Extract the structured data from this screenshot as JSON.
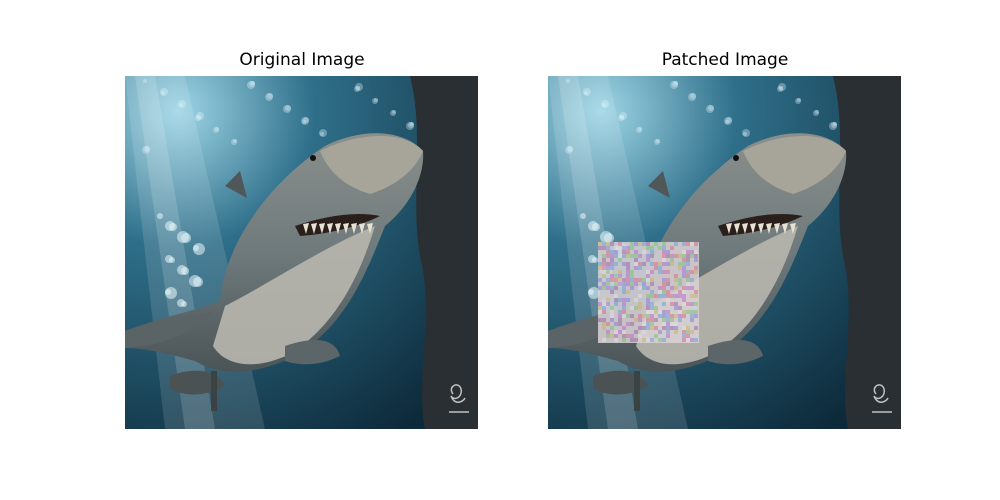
{
  "figure": {
    "panels": [
      {
        "title": "Original Image",
        "content": "shark-photo",
        "patched": false
      },
      {
        "title": "Patched Image",
        "content": "shark-photo",
        "patched": true
      }
    ]
  },
  "colors": {
    "water_dark": "#0d2a3a",
    "water_mid": "#2f6f8a",
    "water_light": "#9fd6e6",
    "shark_body": "#6f7a7c",
    "shark_belly": "#b8b6ae",
    "rock": "#2a2f33"
  }
}
